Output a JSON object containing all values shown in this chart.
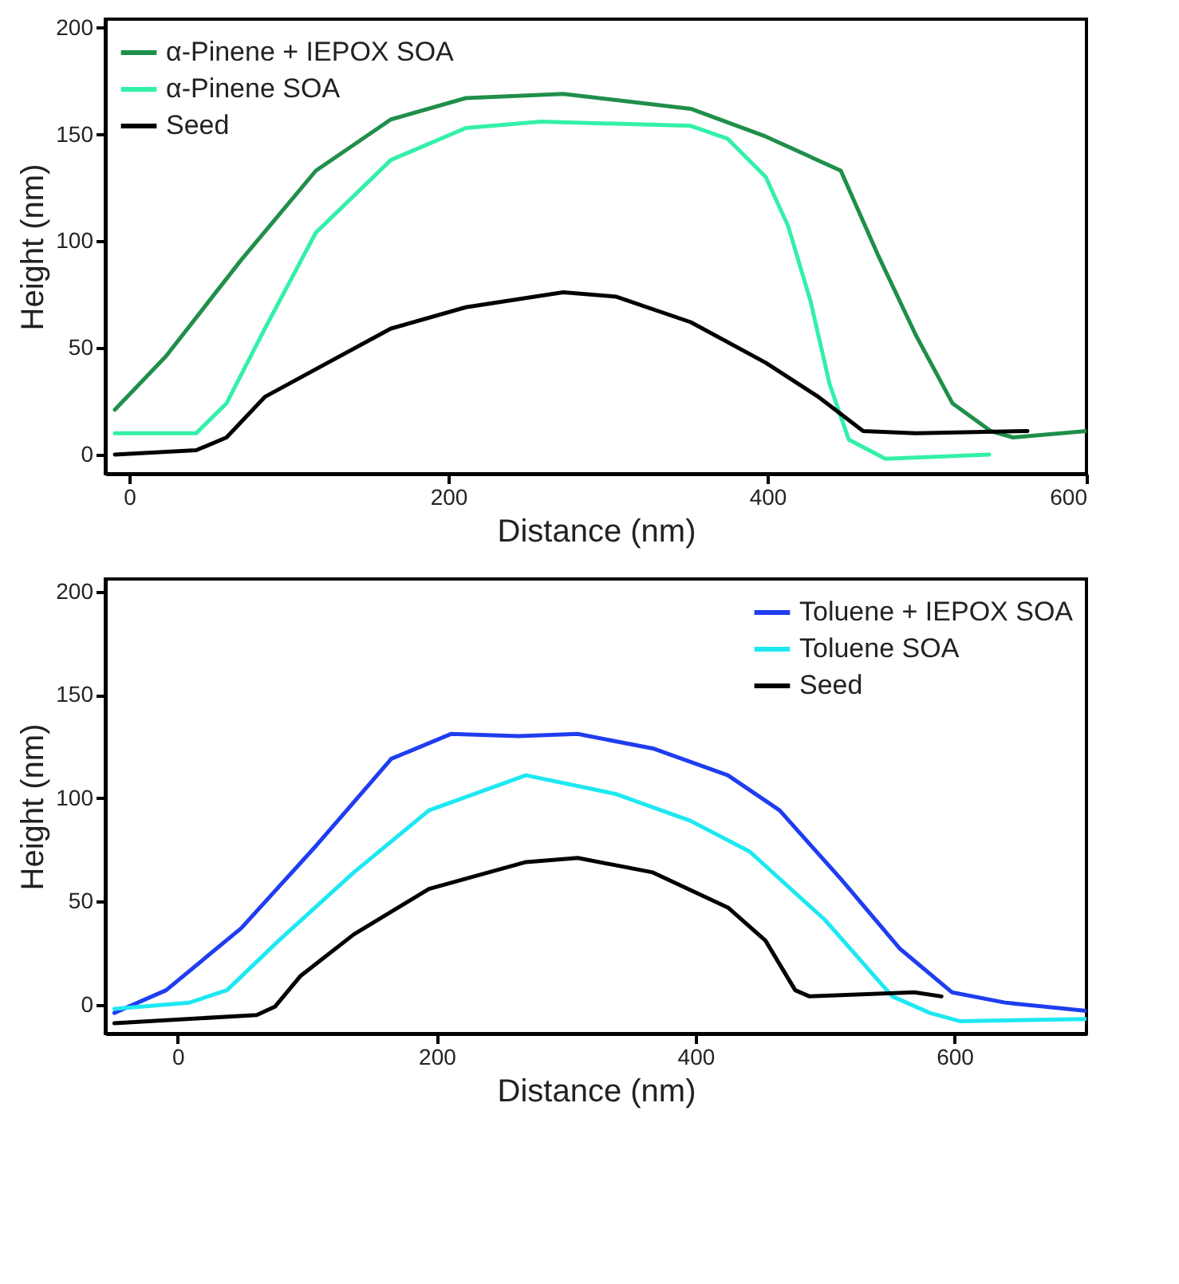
{
  "chart_data": [
    {
      "type": "line",
      "xlabel": "Distance (nm)",
      "ylabel": "Height (nm)",
      "xlim": [
        -15,
        600
      ],
      "ylim": [
        -9,
        204
      ],
      "xticks": [
        0,
        200,
        400,
        600
      ],
      "yticks": [
        0,
        50,
        100,
        150,
        200
      ],
      "grid": false,
      "legend": "top left",
      "line_style": "solid",
      "marker": "none",
      "series": [
        {
          "name": "α-Pinene + IEPOX SOA",
          "color": "#1f8f4a",
          "x": [
            -9,
            23,
            70,
            117,
            164,
            211,
            272,
            352,
            399,
            446,
            469,
            493,
            516,
            540,
            554,
            600
          ],
          "values": [
            21,
            46,
            91,
            133,
            157,
            167,
            169,
            162,
            149,
            133,
            94,
            56,
            24,
            11,
            8,
            11
          ]
        },
        {
          "name": "α-Pinene SOA",
          "color": "#33f0a8",
          "x": [
            -9,
            42,
            61,
            85,
            117,
            164,
            211,
            258,
            352,
            375,
            399,
            413,
            427,
            439,
            451,
            474,
            539
          ],
          "values": [
            10,
            10,
            24,
            59,
            104,
            138,
            153,
            156,
            154,
            148,
            130,
            107,
            72,
            33,
            7,
            -2,
            0
          ]
        },
        {
          "name": "Seed",
          "color": "#000000",
          "x": [
            -9,
            42,
            61,
            85,
            117,
            164,
            211,
            272,
            305,
            352,
            399,
            432,
            460,
            493,
            563
          ],
          "values": [
            0,
            2,
            8,
            27,
            40,
            59,
            69,
            76,
            74,
            62,
            43,
            27,
            11,
            10,
            11
          ]
        }
      ]
    },
    {
      "type": "line",
      "xlabel": "Distance (nm)",
      "ylabel": "Height (nm)",
      "xlim": [
        -56,
        702
      ],
      "ylim": [
        -14,
        206
      ],
      "xticks": [
        0,
        200,
        400,
        600
      ],
      "yticks": [
        0,
        50,
        100,
        150,
        200
      ],
      "grid": false,
      "legend": "top right",
      "line_style": "solid",
      "marker": "none",
      "series": [
        {
          "name": "Toluene + IEPOX SOA",
          "color": "#1f3df0",
          "x": [
            -49,
            -9,
            49,
            107,
            165,
            211,
            263,
            309,
            367,
            425,
            465,
            512,
            558,
            598,
            639,
            702
          ],
          "values": [
            -4,
            7,
            37,
            77,
            119,
            131,
            130,
            131,
            124,
            111,
            94,
            61,
            27,
            6,
            1,
            -3
          ]
        },
        {
          "name": "Toluene SOA",
          "color": "#1ee8f2",
          "x": [
            -49,
            9,
            38,
            78,
            136,
            194,
            269,
            338,
            396,
            442,
            500,
            552,
            581,
            604,
            702
          ],
          "values": [
            -2,
            1,
            7,
            31,
            64,
            94,
            111,
            102,
            89,
            74,
            41,
            4,
            -4,
            -8,
            -7
          ]
        },
        {
          "name": "Seed",
          "color": "#000000",
          "x": [
            -49,
            61,
            75,
            95,
            136,
            194,
            269,
            309,
            367,
            425,
            454,
            477,
            488,
            569,
            590
          ],
          "values": [
            -9,
            -5,
            -1,
            14,
            34,
            56,
            69,
            71,
            64,
            47,
            31,
            7,
            4,
            6,
            4
          ]
        }
      ]
    }
  ]
}
